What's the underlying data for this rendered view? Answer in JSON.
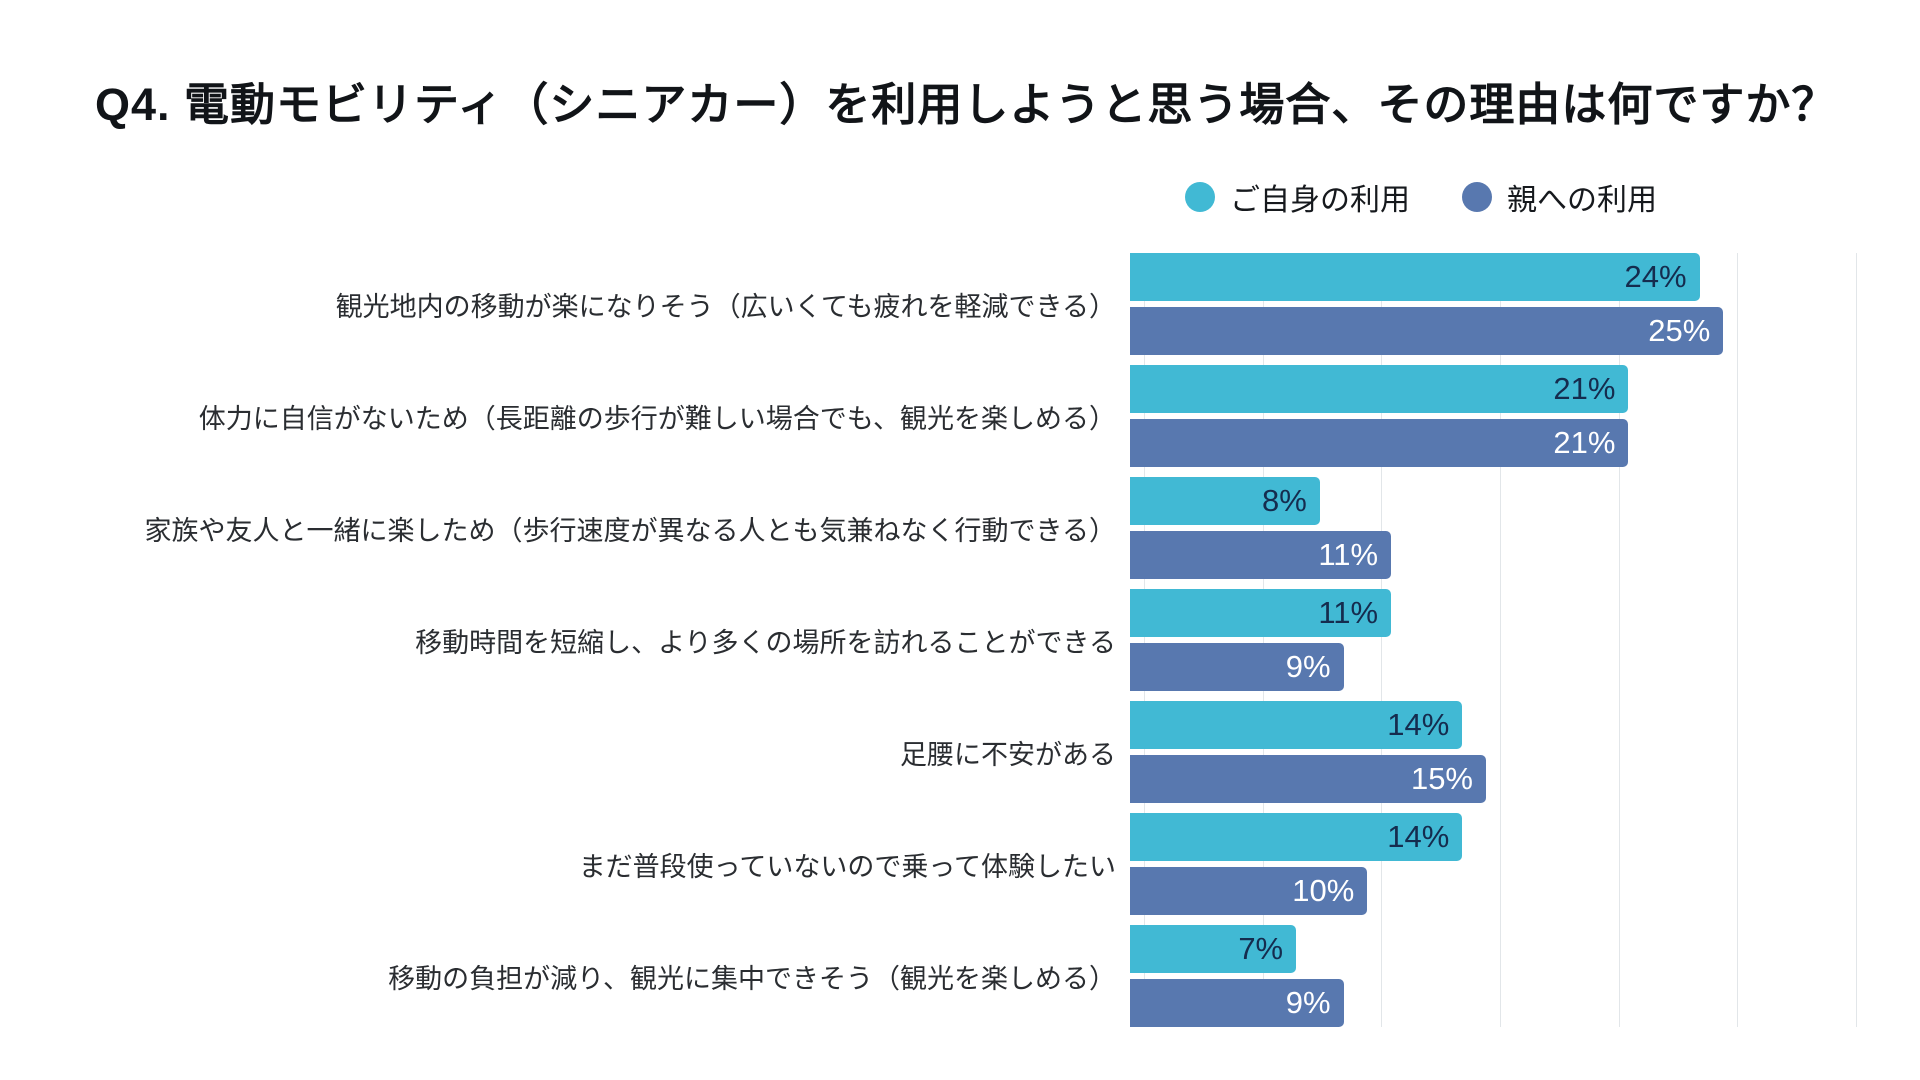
{
  "title": "Q4. 電動モビリティ（シニアカー）を利用しようと思う場合、その理由は何ですか？",
  "legend": [
    {
      "label": "ご自身の利用",
      "color": "#41b9d4"
    },
    {
      "label": "親への利用",
      "color": "#5878af"
    }
  ],
  "colors": {
    "background": "#ffffff",
    "gridline": "#e2e6e9",
    "title_text": "#111418",
    "category_text": "#2a2d31"
  },
  "chart_data": {
    "type": "bar",
    "orientation": "horizontal",
    "grid": true,
    "gridline_interval": 5,
    "xlim": [
      0,
      30
    ],
    "value_suffix": "%",
    "legend_position": "top-right",
    "categories": [
      "観光地内の移動が楽になりそう（広いくても疲れを軽減できる）",
      "体力に自信がないため（長距離の歩行が難しい場合でも、観光を楽しめる）",
      "家族や友人と一緒に楽しため（歩行速度が異なる人とも気兼ねなく行動できる）",
      "移動時間を短縮し、より多くの場所を訪れることができる",
      "足腰に不安がある",
      "まだ普段使っていないので乗って体験したい",
      "移動の負担が減り、観光に集中できそう（観光を楽しめる）"
    ],
    "series": [
      {
        "name": "ご自身の利用",
        "color": "#41b9d4",
        "value_label_color": "#152c4e",
        "values": [
          24,
          21,
          8,
          11,
          14,
          14,
          7
        ]
      },
      {
        "name": "親への利用",
        "color": "#5878af",
        "value_label_color": "#ffffff",
        "values": [
          25,
          21,
          11,
          9,
          15,
          10,
          9
        ]
      }
    ]
  }
}
